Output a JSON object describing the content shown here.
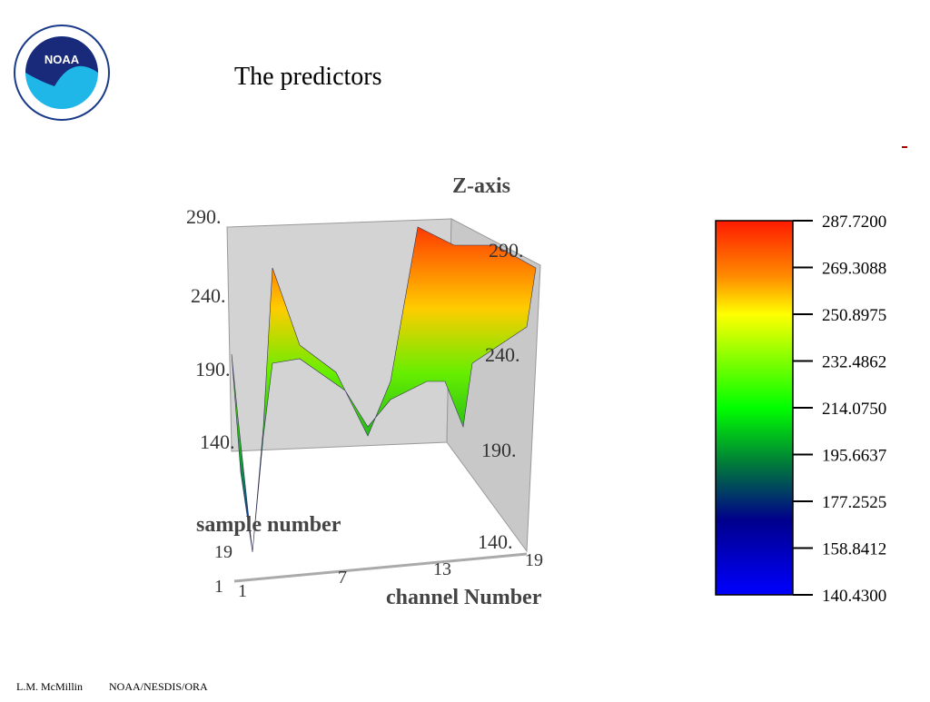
{
  "header": {
    "title": "The predictors",
    "logo_text": "NOAA"
  },
  "figure": {
    "z_axis_label": "Z-axis",
    "back_z_ticks": [
      "290.",
      "240.",
      "190.",
      "140."
    ],
    "right_z_ticks": [
      "290.",
      "240.",
      "190.",
      "140."
    ],
    "sample_axis_label": "sample number",
    "sample_ticks": [
      "19",
      "1"
    ],
    "channel_axis_label": "channel Number",
    "channel_ticks": [
      "1",
      "7",
      "13",
      "19"
    ]
  },
  "colorbar": {
    "ticks": [
      "287.7200",
      "269.3088",
      "250.8975",
      "232.4862",
      "214.0750",
      "195.6637",
      "177.2525",
      "158.8412",
      "140.4300"
    ]
  },
  "footer": {
    "author": "L.M. McMillin",
    "org": "NOAA/NESDIS/ORA"
  }
}
